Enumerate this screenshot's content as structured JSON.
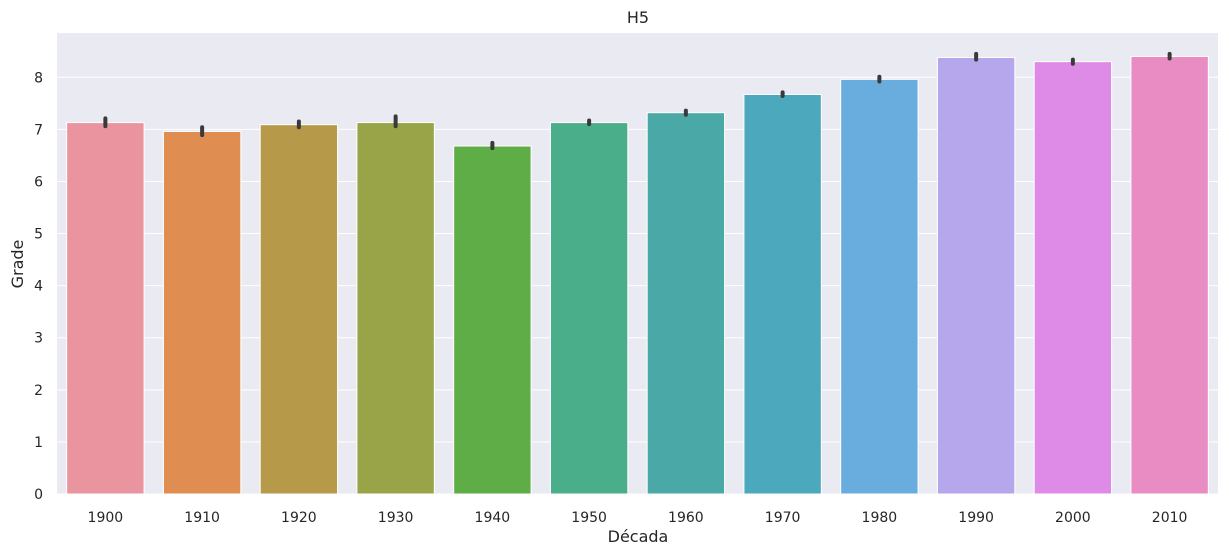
{
  "chart_data": {
    "type": "bar",
    "title": "H5",
    "xlabel": "Década",
    "ylabel": "Grade",
    "categories": [
      "1900",
      "1910",
      "1920",
      "1930",
      "1940",
      "1950",
      "1960",
      "1970",
      "1980",
      "1990",
      "2000",
      "2010"
    ],
    "values": [
      7.13,
      6.96,
      7.09,
      7.13,
      6.68,
      7.13,
      7.32,
      7.67,
      7.96,
      8.38,
      8.3,
      8.4
    ],
    "error_bars": [
      [
        7.06,
        7.21
      ],
      [
        6.89,
        7.04
      ],
      [
        7.04,
        7.15
      ],
      [
        7.06,
        7.25
      ],
      [
        6.64,
        6.74
      ],
      [
        7.1,
        7.17
      ],
      [
        7.28,
        7.36
      ],
      [
        7.64,
        7.71
      ],
      [
        7.92,
        8.01
      ],
      [
        8.34,
        8.45
      ],
      [
        8.26,
        8.34
      ],
      [
        8.36,
        8.45
      ]
    ],
    "ylim": [
      0,
      8.85
    ],
    "yticks": [
      0,
      1,
      2,
      3,
      4,
      5,
      6,
      7,
      8
    ],
    "grid": true,
    "colors": [
      "#e9949f",
      "#e08d52",
      "#b69a49",
      "#98a447",
      "#5fad46",
      "#4aae8b",
      "#4aa9a6",
      "#4ca8bd",
      "#69addf",
      "#b6a6ec",
      "#de8be8",
      "#e88cc3"
    ],
    "background": "#eaeaf2",
    "errorbar_color": "#3a3a3a"
  }
}
